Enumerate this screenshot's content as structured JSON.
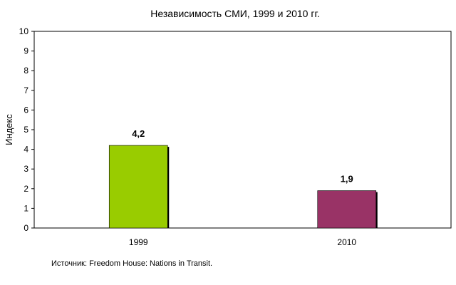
{
  "chart_data": {
    "type": "bar",
    "title": "Независимость СМИ, 1999 и 2010 гг.",
    "ylabel": "Индекс",
    "xlabel": "",
    "categories": [
      "1999",
      "2010"
    ],
    "values": [
      4.2,
      1.9
    ],
    "value_labels": [
      "4,2",
      "1,9"
    ],
    "colors": [
      "#99cc00",
      "#993366"
    ],
    "ylim": [
      0,
      10
    ],
    "yticks": [
      "0",
      "1",
      "2",
      "3",
      "4",
      "5",
      "6",
      "7",
      "8",
      "9",
      "10"
    ],
    "grid": false,
    "legend": "none"
  },
  "source": "Источник: Freedom House: Nations in Transit."
}
